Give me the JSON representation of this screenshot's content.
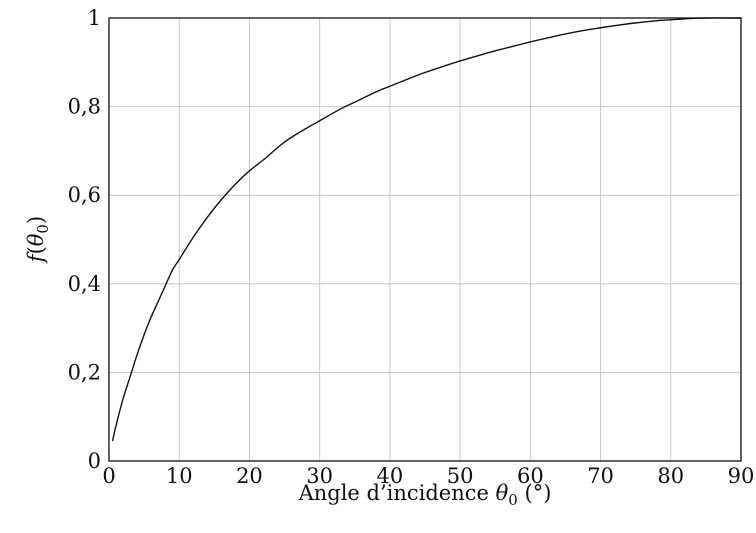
{
  "chart_data": {
    "type": "line",
    "xlabel": {
      "text": "Angle d’incidence ",
      "symbol": "θ",
      "subscript": "0",
      "unit": " (°)"
    },
    "ylabel": {
      "fn": "f",
      "open": "(",
      "symbol": "θ",
      "subscript": "0",
      "close": ")"
    },
    "xlim": [
      0,
      90
    ],
    "ylim": [
      0,
      1
    ],
    "x_ticks": [
      {
        "value": 0,
        "label": "0"
      },
      {
        "value": 10,
        "label": "10"
      },
      {
        "value": 20,
        "label": "20"
      },
      {
        "value": 30,
        "label": "30"
      },
      {
        "value": 40,
        "label": "40"
      },
      {
        "value": 50,
        "label": "50"
      },
      {
        "value": 60,
        "label": "60"
      },
      {
        "value": 70,
        "label": "70"
      },
      {
        "value": 80,
        "label": "80"
      },
      {
        "value": 90,
        "label": "90"
      }
    ],
    "y_ticks": [
      {
        "value": 0,
        "label": "0"
      },
      {
        "value": 0.2,
        "label": "0,2"
      },
      {
        "value": 0.4,
        "label": "0,4"
      },
      {
        "value": 0.6,
        "label": "0,6"
      },
      {
        "value": 0.8,
        "label": "0,8"
      },
      {
        "value": 1,
        "label": "1"
      }
    ],
    "grid": true,
    "legend": "none",
    "series": [
      {
        "color": "#111111",
        "x": [
          0.5,
          1,
          2,
          3,
          4,
          5,
          6,
          7,
          8,
          9,
          10,
          12,
          14,
          16,
          18,
          20,
          22,
          25,
          28,
          30,
          33,
          35,
          38,
          40,
          43,
          45,
          48,
          50,
          53,
          55,
          58,
          60,
          63,
          65,
          68,
          70,
          73,
          75,
          78,
          80,
          83,
          85,
          88,
          90
        ],
        "y": [
          0.045,
          0.08,
          0.14,
          0.19,
          0.24,
          0.285,
          0.325,
          0.36,
          0.395,
          0.43,
          0.455,
          0.505,
          0.55,
          0.59,
          0.625,
          0.655,
          0.68,
          0.72,
          0.75,
          0.768,
          0.795,
          0.81,
          0.833,
          0.846,
          0.865,
          0.877,
          0.893,
          0.903,
          0.917,
          0.926,
          0.938,
          0.946,
          0.957,
          0.964,
          0.973,
          0.978,
          0.985,
          0.989,
          0.994,
          0.996,
          0.999,
          1.0,
          1.0,
          1.0
        ]
      }
    ]
  }
}
